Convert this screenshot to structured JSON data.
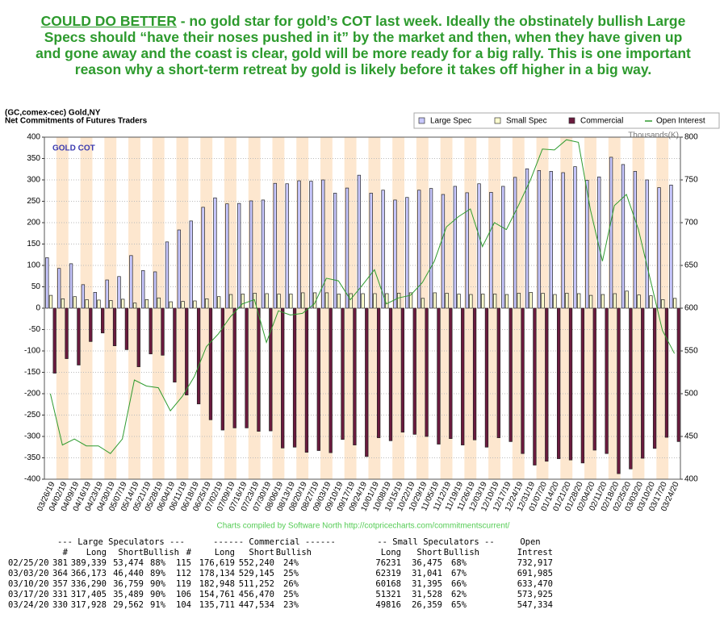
{
  "header": {
    "highlight": "COULD DO BETTER",
    "text": " - no gold star for gold’s COT last week. Ideally the obstinately bullish Large Specs should “have their noses pushed in it” by the market and then, when they have given up and gone away and the coast is clear, gold will be more ready for a big rally. This is one important reason why a short-term retreat by gold is likely before it takes off higher in a big way."
  },
  "chart_data": {
    "type": "bar",
    "title": "GOLD COT",
    "subtitle": [
      "(GC,comex-cec) Gold,NY",
      "Net Commitments of Futures Traders"
    ],
    "y2_label": "Thousands(K)",
    "categories": [
      "03/26/19",
      "04/02/19",
      "04/09/19",
      "04/16/19",
      "04/23/19",
      "04/30/19",
      "05/07/19",
      "05/14/19",
      "05/21/19",
      "05/28/19",
      "06/04/19",
      "06/11/19",
      "06/18/19",
      "06/25/19",
      "07/02/19",
      "07/09/19",
      "07/16/19",
      "07/23/19",
      "07/30/19",
      "08/06/19",
      "08/13/19",
      "08/20/19",
      "08/27/19",
      "09/03/19",
      "09/10/19",
      "09/17/19",
      "09/24/19",
      "10/01/19",
      "10/08/19",
      "10/15/19",
      "10/22/19",
      "10/29/19",
      "11/05/19",
      "11/12/19",
      "11/19/19",
      "11/26/19",
      "12/03/19",
      "12/10/19",
      "12/17/19",
      "12/24/19",
      "12/31/19",
      "01/07/20",
      "01/14/20",
      "01/21/20",
      "01/28/20",
      "02/04/20",
      "02/11/20",
      "02/18/20",
      "02/25/20",
      "03/03/20",
      "03/10/20",
      "03/17/20",
      "03/24/20"
    ],
    "series": [
      {
        "name": "Large Spec",
        "color": "#c8c8ff",
        "values": [
          118,
          93,
          104,
          55,
          37,
          66,
          74,
          123,
          88,
          85,
          155,
          183,
          204,
          236,
          258,
          244,
          245,
          251,
          253,
          292,
          291,
          298,
          297,
          300,
          269,
          281,
          311,
          269,
          276,
          253,
          259,
          276,
          280,
          266,
          285,
          270,
          291,
          271,
          285,
          306,
          326,
          322,
          320,
          317,
          331,
          299,
          307,
          353,
          336,
          320,
          300,
          282,
          288
        ]
      },
      {
        "name": "Small Spec",
        "color": "#ffffd0",
        "values": [
          30,
          22,
          27,
          20,
          19,
          18,
          21,
          12,
          20,
          24,
          15,
          16,
          17,
          22,
          27,
          32,
          33,
          35,
          34,
          33,
          33,
          36,
          36,
          36,
          33,
          34,
          34,
          34,
          34,
          35,
          36,
          23,
          36,
          35,
          33,
          32,
          33,
          33,
          32,
          35,
          37,
          35,
          32,
          35,
          34,
          30,
          32,
          34,
          40,
          31,
          29,
          20,
          23
        ]
      },
      {
        "name": "Commercial",
        "color": "#6b1a3e",
        "values": [
          -152,
          -118,
          -133,
          -78,
          -58,
          -88,
          -97,
          -137,
          -107,
          -110,
          -173,
          -203,
          -224,
          -261,
          -285,
          -280,
          -280,
          -288,
          -287,
          -327,
          -325,
          -337,
          -333,
          -338,
          -307,
          -320,
          -347,
          -303,
          -310,
          -290,
          -295,
          -300,
          -318,
          -305,
          -320,
          -308,
          -325,
          -303,
          -312,
          -340,
          -367,
          -358,
          -352,
          -355,
          -362,
          -332,
          -340,
          -387,
          -376,
          -351,
          -328,
          -302,
          -312
        ]
      },
      {
        "name": "Open Interest",
        "color": "#2e9b2e",
        "axis": "y2",
        "values": [
          500,
          440,
          447,
          439,
          439,
          430,
          447,
          516,
          509,
          507,
          480,
          497,
          520,
          555,
          570,
          590,
          605,
          610,
          560,
          597,
          592,
          594,
          605,
          635,
          632,
          610,
          627,
          645,
          605,
          612,
          615,
          630,
          655,
          695,
          707,
          716,
          672,
          700,
          692,
          720,
          750,
          786,
          785,
          797,
          794,
          715,
          655,
          720,
          733,
          692,
          633,
          574,
          547
        ]
      }
    ],
    "ylim": [
      -400,
      400
    ],
    "yticks": [
      -400,
      -350,
      -300,
      -250,
      -200,
      -150,
      -100,
      -50,
      0,
      50,
      100,
      150,
      200,
      250,
      300,
      350,
      400
    ],
    "y2lim": [
      400,
      800
    ],
    "y2ticks": [
      400,
      450,
      500,
      550,
      600,
      650,
      700,
      750,
      800
    ],
    "grid": true,
    "legend": "top-right"
  },
  "footer": "Charts compiled by Software North  http://cotpricecharts.com/commitmentscurrent/",
  "table": {
    "group_headers": [
      "--- Large Speculators ---",
      "------ Commercial ------",
      "-- Small Speculators --",
      "Open"
    ],
    "columns": [
      "#",
      "Long",
      "Short",
      "Bullish",
      "#",
      "Long",
      "Short",
      "Bullish",
      "Long",
      "Short",
      "Bullish",
      "Intrest"
    ],
    "rows": [
      [
        "02/25/20",
        "381",
        "389,339",
        "53,474",
        "88%",
        "115",
        "176,619",
        "552,240",
        "24%",
        "76231",
        "36,475",
        "68%",
        "732,917"
      ],
      [
        "03/03/20",
        "364",
        "366,173",
        "46,440",
        "89%",
        "112",
        "178,134",
        "529,145",
        "25%",
        "62319",
        "31,041",
        "67%",
        "691,985"
      ],
      [
        "03/10/20",
        "357",
        "336,290",
        "36,759",
        "90%",
        "119",
        "182,948",
        "511,252",
        "26%",
        "60168",
        "31,395",
        "66%",
        "633,470"
      ],
      [
        "03/17/20",
        "331",
        "317,405",
        "35,489",
        "90%",
        "106",
        "154,761",
        "456,470",
        "25%",
        "51321",
        "31,528",
        "62%",
        "573,925"
      ],
      [
        "03/24/20",
        "330",
        "317,928",
        "29,562",
        "91%",
        "104",
        "135,711",
        "447,534",
        "23%",
        "49816",
        "26,359",
        "65%",
        "547,334"
      ]
    ]
  }
}
